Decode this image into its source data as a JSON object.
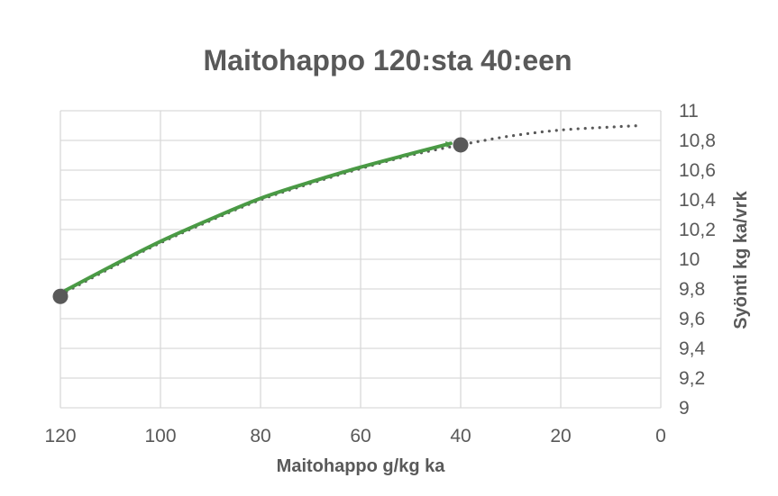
{
  "chart_data": {
    "type": "line",
    "title": "Maitohappo 120:sta 40:een",
    "xlabel": "Maitohappo g/kg ka",
    "ylabel": "Syönti kg ka/vrk",
    "xlim": [
      120,
      0
    ],
    "x_reversed": true,
    "ylim": [
      9,
      11
    ],
    "y_axis_position": "right",
    "grid": true,
    "x_ticks": [
      {
        "value": 120,
        "label": "120"
      },
      {
        "value": 100,
        "label": "100"
      },
      {
        "value": 80,
        "label": "80"
      },
      {
        "value": 60,
        "label": "60"
      },
      {
        "value": 40,
        "label": "40"
      },
      {
        "value": 20,
        "label": "20"
      },
      {
        "value": 0,
        "label": "0"
      }
    ],
    "y_ticks": [
      {
        "value": 11,
        "label": "11"
      },
      {
        "value": 10.8,
        "label": "10,8"
      },
      {
        "value": 10.6,
        "label": "10,6"
      },
      {
        "value": 10.4,
        "label": "10,4"
      },
      {
        "value": 10.2,
        "label": "10,2"
      },
      {
        "value": 10,
        "label": "10"
      },
      {
        "value": 9.8,
        "label": "9,8"
      },
      {
        "value": 9.6,
        "label": "9,6"
      },
      {
        "value": 9.4,
        "label": "9,4"
      },
      {
        "value": 9.2,
        "label": "9,2"
      },
      {
        "value": 9,
        "label": "9"
      }
    ],
    "series": [
      {
        "style": "dotted",
        "color": "#595959",
        "x": [
          120,
          110,
          100,
          90,
          80,
          70,
          60,
          50,
          40,
          30,
          20,
          10,
          4
        ],
        "y": [
          9.76,
          9.94,
          10.11,
          10.26,
          10.4,
          10.51,
          10.61,
          10.7,
          10.77,
          10.83,
          10.87,
          10.89,
          10.9
        ]
      },
      {
        "style": "arrow",
        "color": "#4a9a45",
        "x": [
          119,
          110,
          100,
          90,
          80,
          70,
          60,
          50,
          42
        ],
        "y": [
          9.79,
          9.95,
          10.12,
          10.27,
          10.41,
          10.52,
          10.62,
          10.71,
          10.78
        ]
      }
    ],
    "markers": [
      {
        "x": 120,
        "y": 9.75,
        "color": "#595959"
      },
      {
        "x": 40,
        "y": 10.77,
        "color": "#595959"
      }
    ]
  }
}
